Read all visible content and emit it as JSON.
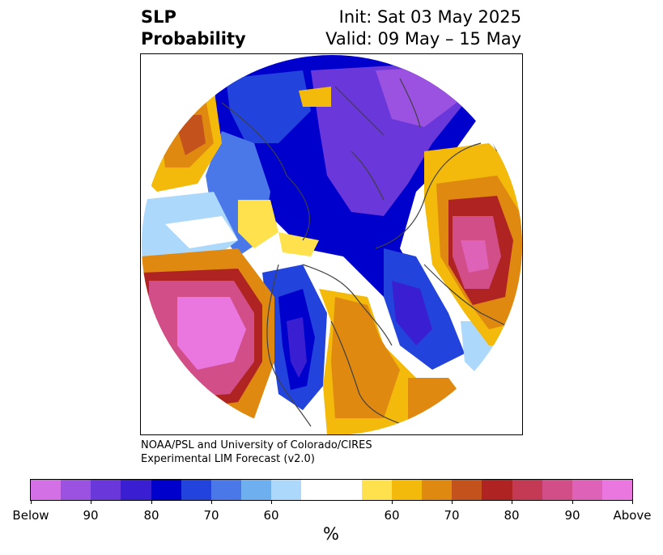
{
  "header": {
    "title_line1": "SLP",
    "title_line2": "Probability",
    "init": "Init: Sat 03 May 2025",
    "valid": "Valid: 09 May – 15 May"
  },
  "credit": {
    "line1": "NOAA/PSL and University of Colorado/CIRES",
    "line2": "Experimental LIM Forecast (v2.0)"
  },
  "colorbar": {
    "units": "%",
    "colors": [
      "#d470e6",
      "#9b52e0",
      "#6a37da",
      "#3a1fd2",
      "#0000cc",
      "#2244dd",
      "#4a78e8",
      "#6eaff0",
      "#acd8fb",
      "#ffffff",
      "#ffffff",
      "#ffe14d",
      "#f3b90b",
      "#df8911",
      "#c4521c",
      "#b02323",
      "#c43a55",
      "#d24e88",
      "#de62b8",
      "#ea76e0"
    ],
    "tick_labels": [
      "Below",
      "90",
      "80",
      "70",
      "60",
      "60",
      "70",
      "80",
      "90",
      "Above"
    ]
  },
  "map": {
    "projection": "north polar stereographic",
    "features": [
      "coastlines",
      "country borders",
      "US state borders"
    ]
  }
}
